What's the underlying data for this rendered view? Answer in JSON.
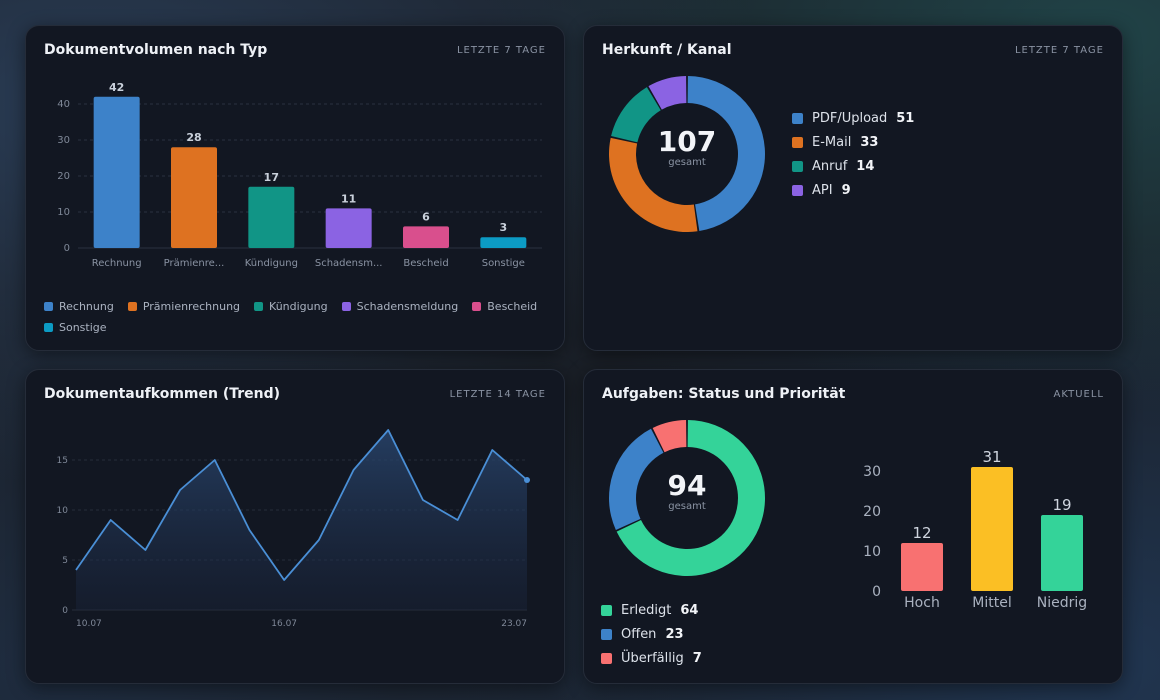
{
  "colors": {
    "blue": "#3d82c9",
    "orange": "#de7221",
    "teal": "#119586",
    "purple": "#8b63e3",
    "pink": "#d94f8d",
    "cyan": "#0c9bc4",
    "green": "#34d399",
    "red": "#f87171",
    "yellow": "#fbbf24"
  },
  "card1": {
    "title": "Dokumentvolumen nach Typ",
    "period": "LETZTE 7 TAGE",
    "legend": [
      "Rechnung",
      "Prämienrechnung",
      "Kündigung",
      "Schadensmeldung",
      "Bescheid",
      "Sonstige"
    ]
  },
  "card2": {
    "title": "Herkunft / Kanal",
    "period": "LETZTE 7 TAGE",
    "total": "107",
    "total_label": "gesamt",
    "items": [
      {
        "label": "PDF/Upload",
        "value": "51"
      },
      {
        "label": "E-Mail",
        "value": "33"
      },
      {
        "label": "Anruf",
        "value": "14"
      },
      {
        "label": "API",
        "value": "9"
      }
    ]
  },
  "card3": {
    "title": "Dokumentaufkommen (Trend)",
    "period": "LETZTE 14 TAGE"
  },
  "card4": {
    "title": "Aufgaben: Status und Priorität",
    "period": "AKTUELL",
    "total": "94",
    "total_label": "gesamt",
    "items": [
      {
        "label": "Erledigt",
        "value": "64"
      },
      {
        "label": "Offen",
        "value": "23"
      },
      {
        "label": "Überfällig",
        "value": "7"
      }
    ]
  },
  "chart_data": [
    {
      "type": "bar",
      "categories": [
        "Rechnung",
        "Prämienre...",
        "Kündigung",
        "Schadensm...",
        "Bescheid",
        "Sonstige"
      ],
      "values": [
        42,
        28,
        17,
        11,
        6,
        3
      ],
      "ylim": [
        0,
        45
      ],
      "yticks": [
        0,
        10,
        20,
        30,
        40
      ],
      "colors": [
        "#3d82c9",
        "#de7221",
        "#119586",
        "#8b63e3",
        "#d94f8d",
        "#0c9bc4"
      ],
      "grid": true
    },
    {
      "type": "pie",
      "donut": true,
      "labels": [
        "PDF/Upload",
        "E-Mail",
        "Anruf",
        "API"
      ],
      "values": [
        51,
        33,
        14,
        9
      ],
      "colors": [
        "#3d82c9",
        "#de7221",
        "#119586",
        "#8b63e3"
      ]
    },
    {
      "type": "area",
      "x": [
        "10.07",
        "11.07",
        "12.07",
        "13.07",
        "14.07",
        "15.07",
        "16.07",
        "17.07",
        "18.07",
        "19.07",
        "20.07",
        "21.07",
        "22.07",
        "23.07"
      ],
      "values": [
        4,
        9,
        6,
        12,
        15,
        8,
        3,
        7,
        14,
        18,
        11,
        9,
        16,
        13
      ],
      "xticks": [
        "10.07",
        "16.07",
        "23.07"
      ],
      "ylim": [
        0,
        20
      ],
      "yticks": [
        0,
        5,
        10,
        15
      ],
      "grid": true,
      "colors": [
        "#4a8fd6"
      ]
    },
    {
      "type": "pie",
      "donut": true,
      "labels": [
        "Erledigt",
        "Offen",
        "Überfällig"
      ],
      "values": [
        64,
        23,
        7
      ],
      "colors": [
        "#34d399",
        "#3d82c9",
        "#f87171"
      ]
    },
    {
      "type": "bar",
      "categories": [
        "Hoch",
        "Mittel",
        "Niedrig"
      ],
      "values": [
        12,
        31,
        19
      ],
      "ylim": [
        0,
        30
      ],
      "yticks": [
        0,
        10,
        20,
        30
      ],
      "colors": [
        "#f87171",
        "#fbbf24",
        "#34d399"
      ]
    }
  ]
}
